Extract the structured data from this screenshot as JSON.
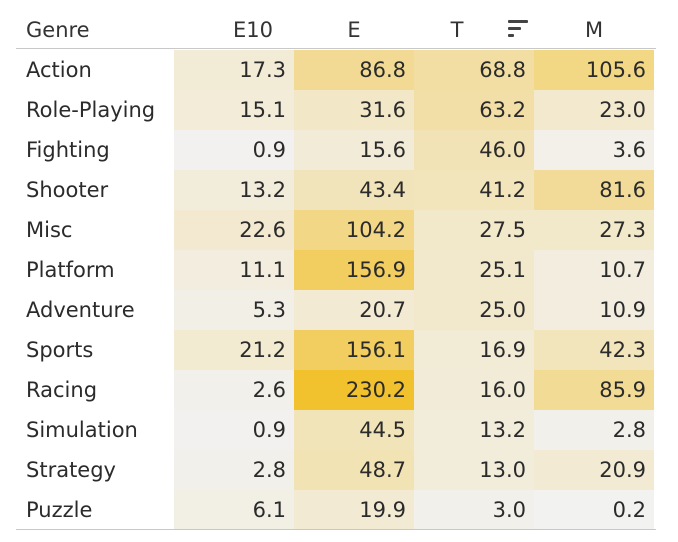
{
  "chart_data": {
    "type": "heatmap",
    "row_header": "Genre",
    "columns": [
      "E10",
      "E",
      "T",
      "M"
    ],
    "rows": [
      {
        "genre": "Action",
        "values": [
          17.3,
          86.8,
          68.8,
          105.6
        ]
      },
      {
        "genre": "Role-Playing",
        "values": [
          15.1,
          31.6,
          63.2,
          23.0
        ]
      },
      {
        "genre": "Fighting",
        "values": [
          0.9,
          15.6,
          46.0,
          3.6
        ]
      },
      {
        "genre": "Shooter",
        "values": [
          13.2,
          43.4,
          41.2,
          81.6
        ]
      },
      {
        "genre": "Misc",
        "values": [
          22.6,
          104.2,
          27.5,
          27.3
        ]
      },
      {
        "genre": "Platform",
        "values": [
          11.1,
          156.9,
          25.1,
          10.7
        ]
      },
      {
        "genre": "Adventure",
        "values": [
          5.3,
          20.7,
          25.0,
          10.9
        ]
      },
      {
        "genre": "Sports",
        "values": [
          21.2,
          156.1,
          16.9,
          42.3
        ]
      },
      {
        "genre": "Racing",
        "values": [
          2.6,
          230.2,
          16.0,
          85.9
        ]
      },
      {
        "genre": "Simulation",
        "values": [
          0.9,
          44.5,
          13.2,
          2.8
        ]
      },
      {
        "genre": "Strategy",
        "values": [
          2.8,
          48.7,
          13.0,
          20.9
        ]
      },
      {
        "genre": "Puzzle",
        "values": [
          6.1,
          19.9,
          3.0,
          0.2
        ]
      }
    ],
    "sorted_column": "T",
    "sort_direction": "descending",
    "color_scale": {
      "low": "#f2f2f2",
      "high": "#f2c12e"
    }
  },
  "icons": {
    "sort": "sort-descending-icon"
  }
}
